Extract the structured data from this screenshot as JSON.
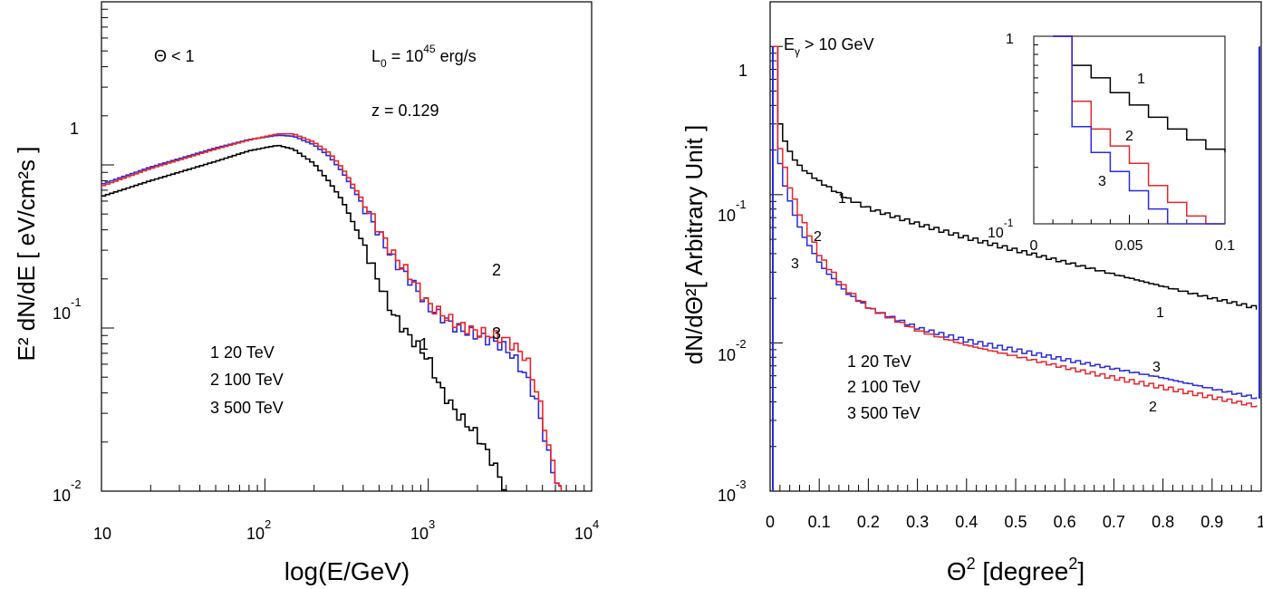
{
  "chart_data": [
    {
      "type": "line",
      "xlabel": "log(E/GeV)",
      "ylabel": "E² dN/dE [ eV/cm²s ]",
      "xscale": "log",
      "yscale": "log",
      "xlim": [
        10,
        10000
      ],
      "ylim": [
        0.01,
        10
      ],
      "x_tick_labels": [
        {
          "value": 10,
          "base": "10",
          "exp": ""
        },
        {
          "value": 100,
          "base": "10",
          "exp": "2"
        },
        {
          "value": 1000,
          "base": "10",
          "exp": "3"
        },
        {
          "value": 10000,
          "base": "10",
          "exp": "4"
        }
      ],
      "y_tick_labels": [
        {
          "value": 0.01,
          "base": "10",
          "exp": "-2"
        },
        {
          "value": 0.1,
          "base": "10",
          "exp": "-1"
        },
        {
          "value": 1,
          "base": "1",
          "exp": ""
        }
      ],
      "annotations": {
        "theta": "Θ < 1",
        "luminosity_pre": "L",
        "luminosity_sub": "0",
        "luminosity_mid": " = 10",
        "luminosity_exp": "45",
        "luminosity_post": " erg/s",
        "redshift": "z = 0.129"
      },
      "legend": [
        "1  20 TeV",
        "2  100 TeV",
        "3  500 TeV"
      ],
      "curve_labels": [
        "1",
        "2",
        "3"
      ],
      "series": [
        {
          "id": "1",
          "color": "#000000",
          "x": [
            10,
            20,
            50,
            80,
            120,
            150,
            200,
            250,
            300,
            400,
            500,
            600,
            700,
            800,
            1000,
            1200,
            1500,
            2000,
            2500,
            3000
          ],
          "y": [
            0.64,
            0.8,
            1.05,
            1.22,
            1.32,
            1.25,
            1.02,
            0.78,
            0.6,
            0.33,
            0.19,
            0.125,
            0.1,
            0.085,
            0.065,
            0.042,
            0.03,
            0.022,
            0.015,
            0.01
          ]
        },
        {
          "id": "2",
          "color": "#e8252a",
          "x": [
            10,
            20,
            50,
            80,
            120,
            150,
            200,
            250,
            300,
            400,
            500,
            600,
            800,
            1000,
            1500,
            2000,
            2500,
            3000,
            3500,
            4000,
            4500,
            5000,
            5500,
            6000,
            6500
          ],
          "y": [
            0.74,
            0.95,
            1.25,
            1.42,
            1.55,
            1.55,
            1.38,
            1.18,
            0.95,
            0.6,
            0.4,
            0.29,
            0.2,
            0.14,
            0.105,
            0.095,
            0.09,
            0.085,
            0.075,
            0.065,
            0.045,
            0.03,
            0.018,
            0.013,
            0.01
          ]
        },
        {
          "id": "3",
          "color": "#2a2ae0",
          "x": [
            10,
            20,
            50,
            80,
            120,
            150,
            200,
            250,
            300,
            400,
            500,
            600,
            800,
            1000,
            1500,
            2000,
            2500,
            3000,
            3500,
            4000,
            4500,
            5000,
            5500,
            6000,
            6500
          ],
          "y": [
            0.76,
            0.97,
            1.27,
            1.43,
            1.52,
            1.5,
            1.33,
            1.12,
            0.9,
            0.57,
            0.38,
            0.27,
            0.19,
            0.135,
            0.1,
            0.09,
            0.083,
            0.075,
            0.062,
            0.05,
            0.038,
            0.025,
            0.016,
            0.012,
            0.01
          ]
        }
      ]
    },
    {
      "type": "line",
      "xlabel_pre": "Θ",
      "xlabel_exp": "2",
      "xlabel_post": " [degree",
      "xlabel_exp2": "2",
      "xlabel_end": "]",
      "ylabel": "dN/dΘ²[ Arbitrary Unit ]",
      "xscale": "linear",
      "yscale": "log",
      "xlim": [
        0,
        1
      ],
      "ylim": [
        0.001,
        2
      ],
      "x_tick_labels": [
        "0",
        "0.1",
        "0.2",
        "0.3",
        "0.4",
        "0.5",
        "0.6",
        "0.7",
        "0.8",
        "0.9",
        "1"
      ],
      "y_tick_labels": [
        {
          "value": 0.001,
          "base": "10",
          "exp": "-3"
        },
        {
          "value": 0.01,
          "base": "10",
          "exp": "-2"
        },
        {
          "value": 0.1,
          "base": "10",
          "exp": "-1"
        },
        {
          "value": 1,
          "base": "1",
          "exp": ""
        }
      ],
      "annotations": {
        "energy_pre": "E",
        "energy_sub": "γ",
        "energy_post": " > 10 GeV"
      },
      "legend": [
        "1  20 TeV",
        "2  100 TeV",
        "3  500 TeV"
      ],
      "curve_labels": [
        "1",
        "2",
        "3",
        "1",
        "3",
        "2"
      ],
      "series": [
        {
          "id": "1",
          "color": "#000000",
          "x": [
            0.0,
            0.01,
            0.02,
            0.04,
            0.06,
            0.1,
            0.15,
            0.2,
            0.3,
            0.4,
            0.5,
            0.6,
            0.7,
            0.8,
            0.9,
            1.0
          ],
          "y": [
            1.0,
            0.36,
            0.25,
            0.18,
            0.15,
            0.12,
            0.095,
            0.08,
            0.063,
            0.051,
            0.042,
            0.035,
            0.029,
            0.024,
            0.02,
            0.017
          ]
        },
        {
          "id": "2",
          "color": "#e8252a",
          "x": [
            0.0,
            0.01,
            0.02,
            0.04,
            0.06,
            0.1,
            0.15,
            0.2,
            0.3,
            0.4,
            0.5,
            0.6,
            0.7,
            0.8,
            0.9,
            1.0
          ],
          "y": [
            1.0,
            0.26,
            0.17,
            0.1,
            0.068,
            0.037,
            0.023,
            0.017,
            0.012,
            0.0096,
            0.0081,
            0.0068,
            0.0058,
            0.005,
            0.0043,
            0.0037
          ]
        },
        {
          "id": "3",
          "color": "#2a2ae0",
          "x": [
            0.0,
            0.01,
            0.02,
            0.04,
            0.06,
            0.1,
            0.15,
            0.2,
            0.3,
            0.4,
            0.5,
            0.6,
            0.7,
            0.8,
            0.9,
            1.0
          ],
          "y": [
            1.0,
            0.2,
            0.13,
            0.08,
            0.055,
            0.033,
            0.022,
            0.017,
            0.0125,
            0.0103,
            0.0089,
            0.0077,
            0.0067,
            0.0058,
            0.0049,
            0.0042
          ]
        }
      ],
      "inset": {
        "xlim": [
          0,
          0.1
        ],
        "ylim": [
          0.1,
          1.0
        ],
        "x_tick_labels": [
          "0",
          "0.05",
          "0.1"
        ],
        "y_tick_labels": [
          {
            "value": 0.1,
            "base": "10",
            "exp": "-1"
          },
          {
            "value": 1,
            "base": "1",
            "exp": ""
          }
        ],
        "curve_labels": [
          "1",
          "2",
          "3"
        ],
        "series": [
          {
            "id": "1",
            "color": "#000000",
            "x": [
              0.0,
              0.01,
              0.02,
              0.03,
              0.04,
              0.05,
              0.06,
              0.07,
              0.08,
              0.09,
              0.1
            ],
            "y": [
              1.0,
              1.0,
              0.7,
              0.6,
              0.5,
              0.43,
              0.37,
              0.32,
              0.28,
              0.25,
              0.24
            ]
          },
          {
            "id": "2",
            "color": "#e8252a",
            "x": [
              0.0,
              0.01,
              0.02,
              0.03,
              0.04,
              0.05,
              0.06,
              0.07,
              0.08,
              0.09,
              0.1
            ],
            "y": [
              1.0,
              1.0,
              0.45,
              0.32,
              0.26,
              0.21,
              0.16,
              0.13,
              0.11,
              0.1,
              0.095
            ]
          },
          {
            "id": "3",
            "color": "#2a2ae0",
            "x": [
              0.0,
              0.01,
              0.02,
              0.03,
              0.04,
              0.05,
              0.06,
              0.07,
              0.08,
              0.09,
              0.1
            ],
            "y": [
              1.0,
              1.0,
              0.33,
              0.24,
              0.19,
              0.15,
              0.12,
              0.1,
              0.09,
              0.08,
              0.075
            ]
          }
        ]
      }
    }
  ]
}
